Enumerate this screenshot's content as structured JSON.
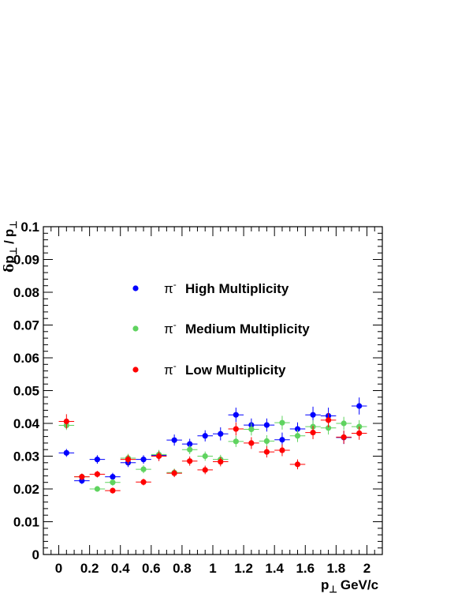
{
  "chart_data": {
    "type": "scatter",
    "title": "",
    "xlabel": {
      "main": "p",
      "sub": "⊥",
      "unit": "GeV/c"
    },
    "ylabel": {
      "delta": "δ",
      "p1": "p",
      "sub1": "⊥",
      "slash": "/",
      "p2": "p",
      "sub2": "⊥"
    },
    "xlim": [
      -0.1,
      2.1
    ],
    "ylim": [
      0,
      0.1
    ],
    "x_ticks": [
      0,
      0.2,
      0.4,
      0.6,
      0.8,
      1,
      1.2,
      1.4,
      1.6,
      1.8,
      2
    ],
    "x_tick_labels": [
      "0",
      "0.2",
      "0.4",
      "0.6",
      "0.8",
      "1",
      "1.2",
      "1.4",
      "1.6",
      "1.8",
      "2"
    ],
    "y_ticks": [
      0,
      0.01,
      0.02,
      0.03,
      0.04,
      0.05,
      0.06,
      0.07,
      0.08,
      0.09,
      0.1
    ],
    "y_tick_labels": [
      "0",
      "0.01",
      "0.02",
      "0.03",
      "0.04",
      "0.05",
      "0.06",
      "0.07",
      "0.08",
      "0.09",
      "0.1"
    ],
    "legend_position": "upper-center",
    "x_error": 0.05,
    "series": [
      {
        "name": "High Multiplicity",
        "symbol": "π",
        "symbol_sup": "-",
        "color": "#0000ff",
        "x": [
          0.05,
          0.15,
          0.25,
          0.35,
          0.45,
          0.55,
          0.65,
          0.75,
          0.85,
          0.95,
          1.05,
          1.15,
          1.25,
          1.35,
          1.45,
          1.55,
          1.65,
          1.75,
          1.85,
          1.95
        ],
        "y": [
          0.031,
          0.0225,
          0.029,
          0.0237,
          0.028,
          0.029,
          0.0302,
          0.0349,
          0.0337,
          0.0362,
          0.0368,
          0.0426,
          0.0395,
          0.0395,
          0.035,
          0.0383,
          0.0426,
          0.0423,
          0.0357,
          0.0453
        ],
        "yerr": [
          0.0012,
          0.001,
          0.0013,
          0.0012,
          0.0013,
          0.0013,
          0.0015,
          0.0017,
          0.0016,
          0.0017,
          0.002,
          0.0022,
          0.002,
          0.002,
          0.0022,
          0.002,
          0.0025,
          0.0025,
          0.002,
          0.0026
        ]
      },
      {
        "name": "Medium Multiplicity",
        "symbol": "π",
        "symbol_sup": "-",
        "color": "#5fd35f",
        "x": [
          0.05,
          0.15,
          0.25,
          0.35,
          0.45,
          0.55,
          0.65,
          0.75,
          0.85,
          0.95,
          1.05,
          1.15,
          1.25,
          1.35,
          1.45,
          1.55,
          1.65,
          1.75,
          1.85,
          1.95
        ],
        "y": [
          0.0394,
          0.0237,
          0.02,
          0.022,
          0.0294,
          0.026,
          0.0305,
          0.025,
          0.032,
          0.03,
          0.029,
          0.0345,
          0.0382,
          0.0346,
          0.0402,
          0.0362,
          0.039,
          0.0386,
          0.04,
          0.039
        ],
        "yerr": [
          0.0014,
          0.001,
          0.0008,
          0.001,
          0.0013,
          0.0012,
          0.0014,
          0.0012,
          0.0014,
          0.0014,
          0.0014,
          0.0017,
          0.0019,
          0.0018,
          0.0021,
          0.0019,
          0.002,
          0.002,
          0.002,
          0.002
        ]
      },
      {
        "name": "Low Multiplicity",
        "symbol": "π",
        "symbol_sup": "-",
        "color": "#ff0000",
        "x": [
          0.05,
          0.15,
          0.25,
          0.35,
          0.45,
          0.55,
          0.65,
          0.75,
          0.85,
          0.95,
          1.05,
          1.15,
          1.25,
          1.35,
          1.45,
          1.55,
          1.65,
          1.75,
          1.85,
          1.95
        ],
        "y": [
          0.0406,
          0.0237,
          0.0245,
          0.0195,
          0.029,
          0.0221,
          0.03,
          0.0248,
          0.0285,
          0.0258,
          0.0283,
          0.0383,
          0.034,
          0.0313,
          0.0318,
          0.0275,
          0.0372,
          0.041,
          0.0358,
          0.037
        ],
        "yerr": [
          0.0022,
          0.001,
          0.001,
          0.0009,
          0.0014,
          0.001,
          0.0015,
          0.0012,
          0.0014,
          0.0013,
          0.0014,
          0.002,
          0.0018,
          0.0017,
          0.0018,
          0.0015,
          0.002,
          0.0022,
          0.002,
          0.002
        ]
      }
    ]
  }
}
